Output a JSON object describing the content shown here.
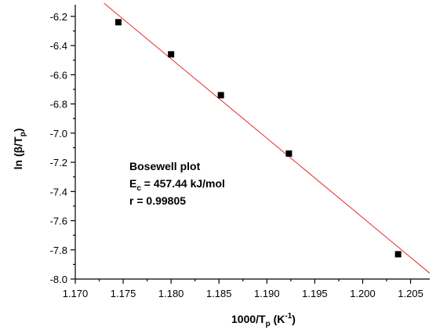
{
  "chart_data": {
    "type": "scatter",
    "title": "",
    "xlabel": {
      "main": "1000/T",
      "sub": "p",
      "unit_prefix": " (K",
      "unit_sup": "-1",
      "unit_suffix": ")"
    },
    "ylabel": {
      "main": "ln (β/T",
      "sub": "p",
      "suffix": ")"
    },
    "xlim": [
      1.17,
      1.207
    ],
    "ylim": [
      -8.0,
      -6.12
    ],
    "xticks": [
      "1.170",
      "1.175",
      "1.180",
      "1.185",
      "1.190",
      "1.195",
      "1.200",
      "1.205"
    ],
    "yticks": [
      "-6.2",
      "-6.4",
      "-6.6",
      "-6.8",
      "-7.0",
      "-7.2",
      "-7.4",
      "-7.6",
      "-7.8",
      "-8.0"
    ],
    "series": [
      {
        "points": [
          {
            "x": 1.1745,
            "y": -6.24
          },
          {
            "x": 1.18,
            "y": -6.46
          },
          {
            "x": 1.1852,
            "y": -6.74
          },
          {
            "x": 1.1923,
            "y": -7.14
          },
          {
            "x": 1.2037,
            "y": -7.83
          }
        ],
        "marker_color": "#000000"
      }
    ],
    "fit_line": {
      "x": [
        1.173,
        1.207
      ],
      "y": [
        -6.11,
        -7.96
      ],
      "color": "#e8282b"
    },
    "annotation": {
      "line1": "Bosewell plot",
      "line2_main": "E",
      "line2_sub": "c",
      "line2_rest": " = 457.44 kJ/mol",
      "line3": "r = 0.99805"
    },
    "grid": false
  }
}
